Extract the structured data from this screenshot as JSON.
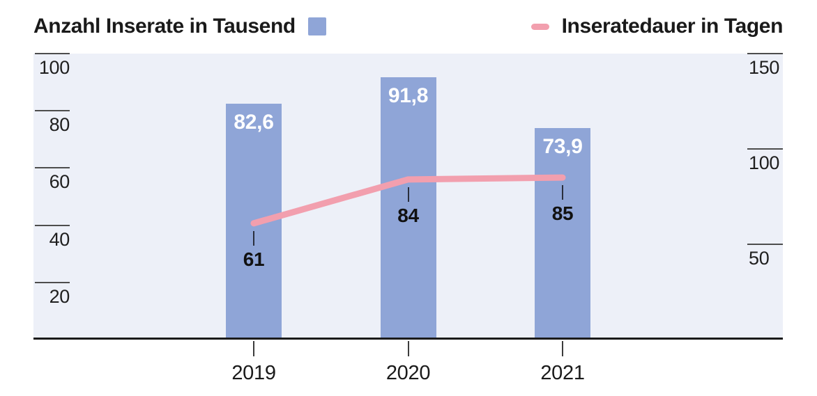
{
  "legend": {
    "bars_label": "Anzahl Inserate in Tausend",
    "line_label": "Inseratedauer in Tagen"
  },
  "colors": {
    "bar": "#8fa5d7",
    "line": "#f29fae",
    "plot_bg": "#edf0f8",
    "axis_line": "#1a1a1a",
    "tick_line": "#4d4d4d",
    "bar_label_text": "#ffffff",
    "line_label_text": "#111111"
  },
  "chart_data": {
    "type": "bar",
    "subtype": "bar-and-line-combo",
    "categories": [
      "2019",
      "2020",
      "2021"
    ],
    "series": [
      {
        "name": "Anzahl Inserate in Tausend",
        "type": "bar",
        "axis": "left",
        "values": [
          82.6,
          91.8,
          73.9
        ],
        "labels": [
          "82,6",
          "91,8",
          "73,9"
        ]
      },
      {
        "name": "Inseratedauer in Tagen",
        "type": "line",
        "axis": "right",
        "values": [
          61,
          84,
          85
        ],
        "labels": [
          "61",
          "84",
          "85"
        ]
      }
    ],
    "left_axis": {
      "ticks": [
        100,
        80,
        60,
        40,
        20
      ],
      "range": [
        0,
        100
      ]
    },
    "right_axis": {
      "ticks": [
        150,
        100,
        50
      ],
      "range": [
        0,
        150
      ]
    },
    "grid": false,
    "legend_position": "top"
  }
}
